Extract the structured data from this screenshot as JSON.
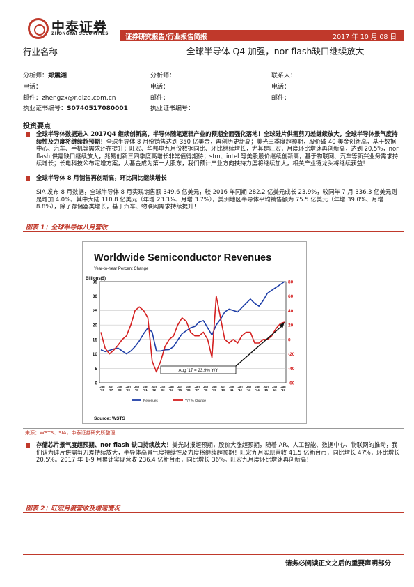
{
  "header": {
    "logo_cn": "中泰证券",
    "logo_en": "ZHONGTAI SECURITIES",
    "category": "证券研究报告/行业报告简报",
    "date": "2017 年 10 月 08 日"
  },
  "doc": {
    "industry": "行业名称",
    "title": "全球半导体 Q4 加强，nor flash缺口继续放大"
  },
  "analysts": {
    "col1": {
      "analyst_label": "分析师：",
      "analyst_name": "郑震湘",
      "phone_label": "电话：",
      "email_label": "邮件：",
      "email": "zhengzx@r.qlzq.com.cn",
      "license_label": "执业证书编号：",
      "license": "S0740517080001"
    },
    "col2": {
      "analyst_label": "分析师：",
      "phone_label": "电话：",
      "email_label": "邮件：",
      "license_label": "执业证书编号："
    },
    "col3": {
      "contact_label": "联系人：",
      "phone_label": "电话：",
      "email_label": "邮件："
    }
  },
  "section": {
    "title": "投资要点"
  },
  "bullets": [
    {
      "bold": "全球半导体数据进入 2017Q4 继续创新高，半导体随笔逻辑产业的预期全面强化落地！全球硅片供需剪刀差继续放大，全球半导体景气度持续性及力度将继续超预期！",
      "text": "全球半导体 8 月份销售达到 350 亿美金，再创历史新高；美光三季度超预期，股价破 40 美金创新高，基于数据中心、汽车、手机等需求还在提升；旺宏、华邦电九月份数据同比、环比继续增长，尤其是旺宏，月度环比增速再创新高，达到 20.5%，nor flash 供需缺口继续放大，兆易创新三四季度高增长非常值得期待；stm、intel 等美股股价继续创新高，基于物联网、汽车等新兴业务需求持续增长；长电科技公布定增方案，大基金成为第一大股东，我们预计产业方向扶持力度将继续加大，相关产业链龙头将继续获益！"
    },
    {
      "bold": "全球半导体 8 月销售再创新高，环比同比继续增长",
      "text": "SIA 发布 8 月数据，全球半导体 8 月实现销售额 349.6 亿美元，较 2016 年同期 282.2 亿美元成长 23.9%，较同年 7 月 336.3 亿美元则是增加 4.0%。其中大陆 110.8 亿美元（年增 23.3%、月增 3.7%），美洲地区半导体平均销售额为 75.5 亿美元（年增 39.0%、月增 8.8%），除了存储器类增长，基于汽车、物联网需求持续提升！"
    },
    {
      "bold": "存储芯片景气度超预期、nor flash 缺口持续放大！",
      "text": "美光财报超预期，股价大涨超预期，随着 AR、人工智能、数据中心、物联网的推动，我们认为硅片供需剪刀差持续放大，半导体高景气度持续性及力度将继续超预期！旺宏九月实现营收 41.5 亿新台币，同比增长 47%，环比增长 20.5%。2017 年 1-9 月累计实现营收 236.4 亿新台币，同比增长 36%。旺宏九月度环比增速再创新高！"
    }
  ],
  "figure1": {
    "label": "图表 1：全球半导体八月营收",
    "source": "来源：WSTS、SIA，中泰证券研究所整理"
  },
  "figure2": {
    "label": "图表 2：旺宏月度营收及增速情况"
  },
  "footer": {
    "text": "请务必阅读正文之后的重要声明部分"
  },
  "chart_data": {
    "type": "line",
    "title": "Worldwide Semiconductor Revenues",
    "subtitle": "Year-to-Year Percent Change",
    "y_left_label": "Billions($)",
    "y_left_range": [
      0,
      35
    ],
    "y_left_ticks": [
      "35",
      "30",
      "25",
      "20",
      "15",
      "10",
      "5",
      "0"
    ],
    "y_right_range": [
      -60,
      80
    ],
    "y_right_ticks": [
      "80",
      "60",
      "40",
      "20",
      "0",
      "-20",
      "-40",
      "-60"
    ],
    "x_month_labels": [
      "Jan",
      "Jan",
      "Jan",
      "Jan",
      "Jan",
      "Jan",
      "Jan",
      "Jan",
      "Jan",
      "Jan",
      "Jan",
      "Jan",
      "Jan",
      "Jan",
      "Jan",
      "Jan",
      "Jan",
      "Jan",
      "Jan",
      "Jan",
      "Jan",
      "Jan"
    ],
    "x_labels": [
      "'96",
      "'97",
      "'98",
      "'99",
      "'00",
      "'01",
      "'02",
      "'03",
      "'04",
      "'05",
      "'06",
      "'07",
      "'08",
      "'09",
      "'10",
      "'11",
      "'12",
      "'13",
      "'14",
      "'15",
      "'16",
      "'17"
    ],
    "annotation": "Aug '17 = 23.9% Y/Y",
    "source": "Source: WSTS",
    "series": [
      {
        "name": "Revenues",
        "color": "#1f3fa8",
        "values": [
          11.4,
          10.8,
          11.2,
          11.7,
          12.0,
          11.0,
          10.0,
          11.0,
          12.5,
          14.5,
          17.0,
          19.0,
          17.5,
          11.0,
          11.0,
          11.4,
          11.5,
          12.5,
          14.8,
          17.0,
          18.0,
          19.0,
          19.5,
          21.0,
          21.5,
          19.0,
          16.5,
          20.0,
          22.0,
          24.5,
          25.5,
          25.0,
          24.5,
          26.0,
          27.5,
          29.0,
          27.5,
          26.5,
          28.5,
          31.0,
          32.0,
          33.0,
          34.0,
          35.0
        ]
      },
      {
        "name": "Y/Y % Change",
        "color": "#d42020",
        "values": [
          10,
          -12,
          -20,
          -15,
          -8,
          0,
          5,
          20,
          40,
          45,
          40,
          30,
          -30,
          -45,
          -30,
          -10,
          0,
          5,
          20,
          30,
          25,
          10,
          5,
          5,
          10,
          0,
          -25,
          60,
          30,
          0,
          -5,
          0,
          -5,
          5,
          10,
          10,
          -5,
          -5,
          0,
          0,
          5,
          15,
          22,
          24
        ]
      }
    ]
  }
}
